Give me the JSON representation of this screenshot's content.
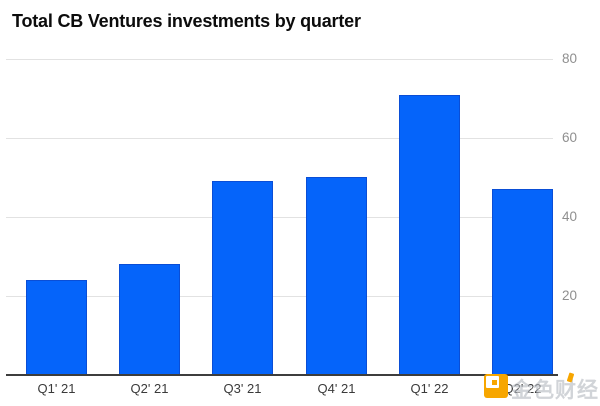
{
  "title": "Total CB Ventures investments by quarter",
  "chart_data": {
    "type": "bar",
    "title": "Total CB Ventures investments by quarter",
    "categories": [
      "Q1' 21",
      "Q2' 21",
      "Q3' 21",
      "Q4' 21",
      "Q1' 22",
      "Q2' 22"
    ],
    "values": [
      24,
      28,
      49,
      50,
      71,
      47
    ],
    "xlabel": "",
    "ylabel": "",
    "ylim": [
      0,
      80
    ],
    "yticks": [
      20,
      40,
      60,
      80
    ],
    "ytick_side": "right",
    "grid": true,
    "legend": false,
    "bar_color": "#0564fa",
    "bar_border_color": "#0a4ed6",
    "gridline_color": "#e2e2e2",
    "axis_line_color": "#3d3d3d",
    "ytick_label_color": "#8f8f8f",
    "xtick_label_color": "#3a3a3a"
  },
  "watermark": {
    "text": "金色财经",
    "logo_color": "#f7a600",
    "text_color": "#b3b8bf",
    "accent_color": "#f7a600"
  }
}
